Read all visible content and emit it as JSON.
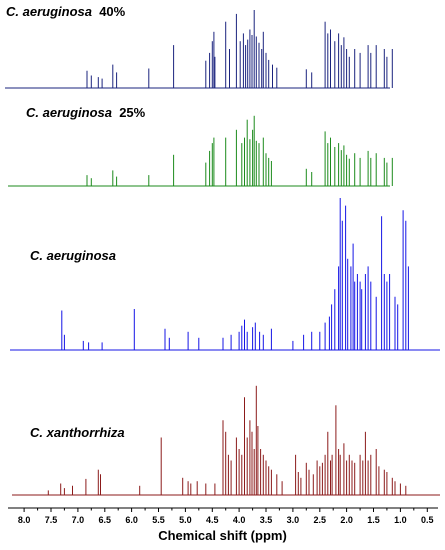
{
  "chart_data": {
    "type": "line",
    "xlabel": "Chemical shift (ppm)",
    "x_reversed": true,
    "xlim": [
      8.3,
      0.3
    ],
    "x_ticks": [
      "8.0",
      "7.5",
      "7.0",
      "6.5",
      "6.0",
      "5.5",
      "5.0",
      "4.5",
      "4.0",
      "3.5",
      "3.0",
      "2.5",
      "2.0",
      "1.5",
      "1.0",
      "0.5"
    ],
    "x_tick_values": [
      8.0,
      7.5,
      7.0,
      6.5,
      6.0,
      5.5,
      5.0,
      4.5,
      4.0,
      3.5,
      3.0,
      2.5,
      2.0,
      1.5,
      1.0,
      0.5
    ],
    "series": [
      {
        "name": "C. aeruginosa 40%",
        "species": "C. aeruginosa",
        "pct": "40%",
        "color": "#1a237e",
        "peaks": [
          [
            6.83,
            0.22
          ],
          [
            6.75,
            0.16
          ],
          [
            6.62,
            0.14
          ],
          [
            6.55,
            0.12
          ],
          [
            6.35,
            0.3
          ],
          [
            6.28,
            0.2
          ],
          [
            5.68,
            0.25
          ],
          [
            5.22,
            0.55
          ],
          [
            4.62,
            0.35
          ],
          [
            4.55,
            0.45
          ],
          [
            4.5,
            0.6
          ],
          [
            4.47,
            0.72
          ],
          [
            4.45,
            0.4
          ],
          [
            4.25,
            0.85
          ],
          [
            4.18,
            0.5
          ],
          [
            4.05,
            0.95
          ],
          [
            3.98,
            0.6
          ],
          [
            3.92,
            0.7
          ],
          [
            3.88,
            0.55
          ],
          [
            3.84,
            0.62
          ],
          [
            3.8,
            0.75
          ],
          [
            3.76,
            0.68
          ],
          [
            3.72,
            1.0
          ],
          [
            3.68,
            0.66
          ],
          [
            3.63,
            0.58
          ],
          [
            3.58,
            0.5
          ],
          [
            3.55,
            0.72
          ],
          [
            3.5,
            0.45
          ],
          [
            3.45,
            0.36
          ],
          [
            3.38,
            0.3
          ],
          [
            3.3,
            0.26
          ],
          [
            2.75,
            0.24
          ],
          [
            2.65,
            0.2
          ],
          [
            2.4,
            0.85
          ],
          [
            2.35,
            0.7
          ],
          [
            2.3,
            0.75
          ],
          [
            2.22,
            0.6
          ],
          [
            2.15,
            0.7
          ],
          [
            2.1,
            0.55
          ],
          [
            2.05,
            0.65
          ],
          [
            2.0,
            0.5
          ],
          [
            1.95,
            0.4
          ],
          [
            1.85,
            0.5
          ],
          [
            1.75,
            0.45
          ],
          [
            1.6,
            0.55
          ],
          [
            1.55,
            0.45
          ],
          [
            1.45,
            0.55
          ],
          [
            1.3,
            0.5
          ],
          [
            1.25,
            0.4
          ],
          [
            1.15,
            0.5
          ]
        ]
      },
      {
        "name": "C. aeruginosa 25%",
        "species": "C. aeruginosa",
        "pct": "25%",
        "color": "#1b8a1b",
        "peaks": [
          [
            6.83,
            0.14
          ],
          [
            6.75,
            0.1
          ],
          [
            6.35,
            0.2
          ],
          [
            6.28,
            0.12
          ],
          [
            5.68,
            0.14
          ],
          [
            5.22,
            0.4
          ],
          [
            4.62,
            0.3
          ],
          [
            4.55,
            0.45
          ],
          [
            4.5,
            0.55
          ],
          [
            4.47,
            0.62
          ],
          [
            4.25,
            0.62
          ],
          [
            4.05,
            0.72
          ],
          [
            3.95,
            0.55
          ],
          [
            3.9,
            0.62
          ],
          [
            3.85,
            0.85
          ],
          [
            3.8,
            0.6
          ],
          [
            3.75,
            0.72
          ],
          [
            3.72,
            0.9
          ],
          [
            3.68,
            0.58
          ],
          [
            3.63,
            0.55
          ],
          [
            3.55,
            0.62
          ],
          [
            3.5,
            0.42
          ],
          [
            3.45,
            0.36
          ],
          [
            3.4,
            0.32
          ],
          [
            2.75,
            0.22
          ],
          [
            2.65,
            0.18
          ],
          [
            2.4,
            0.7
          ],
          [
            2.35,
            0.55
          ],
          [
            2.3,
            0.62
          ],
          [
            2.22,
            0.5
          ],
          [
            2.15,
            0.55
          ],
          [
            2.1,
            0.46
          ],
          [
            2.05,
            0.52
          ],
          [
            2.0,
            0.4
          ],
          [
            1.95,
            0.35
          ],
          [
            1.85,
            0.42
          ],
          [
            1.75,
            0.36
          ],
          [
            1.6,
            0.45
          ],
          [
            1.55,
            0.36
          ],
          [
            1.45,
            0.42
          ],
          [
            1.3,
            0.36
          ],
          [
            1.25,
            0.3
          ],
          [
            1.15,
            0.36
          ]
        ]
      },
      {
        "name": "C. aeruginosa",
        "species": "C. aeruginosa",
        "pct": "",
        "color": "#1414e6",
        "peaks": [
          [
            7.3,
            0.26
          ],
          [
            7.25,
            0.1
          ],
          [
            6.9,
            0.06
          ],
          [
            6.8,
            0.05
          ],
          [
            6.55,
            0.05
          ],
          [
            5.95,
            0.27
          ],
          [
            5.38,
            0.14
          ],
          [
            5.3,
            0.08
          ],
          [
            4.95,
            0.12
          ],
          [
            4.75,
            0.08
          ],
          [
            4.3,
            0.08
          ],
          [
            4.15,
            0.1
          ],
          [
            4.0,
            0.12
          ],
          [
            3.95,
            0.16
          ],
          [
            3.9,
            0.2
          ],
          [
            3.85,
            0.12
          ],
          [
            3.75,
            0.15
          ],
          [
            3.7,
            0.18
          ],
          [
            3.62,
            0.12
          ],
          [
            3.55,
            0.1
          ],
          [
            3.4,
            0.14
          ],
          [
            3.0,
            0.06
          ],
          [
            2.8,
            0.1
          ],
          [
            2.65,
            0.12
          ],
          [
            2.5,
            0.12
          ],
          [
            2.4,
            0.18
          ],
          [
            2.32,
            0.22
          ],
          [
            2.28,
            0.3
          ],
          [
            2.22,
            0.4
          ],
          [
            2.15,
            0.55
          ],
          [
            2.12,
            1.0
          ],
          [
            2.08,
            0.85
          ],
          [
            2.02,
            0.95
          ],
          [
            1.98,
            0.6
          ],
          [
            1.92,
            0.55
          ],
          [
            1.88,
            0.7
          ],
          [
            1.85,
            0.45
          ],
          [
            1.8,
            0.5
          ],
          [
            1.75,
            0.45
          ],
          [
            1.72,
            0.4
          ],
          [
            1.65,
            0.5
          ],
          [
            1.6,
            0.55
          ],
          [
            1.55,
            0.45
          ],
          [
            1.45,
            0.35
          ],
          [
            1.35,
            0.88
          ],
          [
            1.3,
            0.5
          ],
          [
            1.25,
            0.45
          ],
          [
            1.2,
            0.5
          ],
          [
            1.1,
            0.35
          ],
          [
            1.05,
            0.3
          ],
          [
            0.95,
            0.92
          ],
          [
            0.9,
            0.85
          ],
          [
            0.85,
            0.55
          ]
        ]
      },
      {
        "name": "C. xanthorrhiza",
        "species": "C. xanthorrhiza",
        "pct": "",
        "color": "#8b1a1a",
        "peaks": [
          [
            7.55,
            0.04
          ],
          [
            7.32,
            0.1
          ],
          [
            7.25,
            0.06
          ],
          [
            7.1,
            0.08
          ],
          [
            6.85,
            0.14
          ],
          [
            6.62,
            0.22
          ],
          [
            6.58,
            0.18
          ],
          [
            5.85,
            0.08
          ],
          [
            5.45,
            0.5
          ],
          [
            5.05,
            0.15
          ],
          [
            4.95,
            0.12
          ],
          [
            4.9,
            0.1
          ],
          [
            4.78,
            0.12
          ],
          [
            4.62,
            0.1
          ],
          [
            4.45,
            0.1
          ],
          [
            4.3,
            0.65
          ],
          [
            4.25,
            0.55
          ],
          [
            4.2,
            0.35
          ],
          [
            4.15,
            0.3
          ],
          [
            4.05,
            0.5
          ],
          [
            4.0,
            0.4
          ],
          [
            3.95,
            0.35
          ],
          [
            3.9,
            0.85
          ],
          [
            3.85,
            0.5
          ],
          [
            3.8,
            0.65
          ],
          [
            3.76,
            0.55
          ],
          [
            3.72,
            0.4
          ],
          [
            3.68,
            0.95
          ],
          [
            3.65,
            0.6
          ],
          [
            3.6,
            0.4
          ],
          [
            3.55,
            0.35
          ],
          [
            3.5,
            0.3
          ],
          [
            3.45,
            0.25
          ],
          [
            3.4,
            0.22
          ],
          [
            3.3,
            0.18
          ],
          [
            3.2,
            0.12
          ],
          [
            2.95,
            0.35
          ],
          [
            2.9,
            0.2
          ],
          [
            2.85,
            0.15
          ],
          [
            2.75,
            0.28
          ],
          [
            2.7,
            0.22
          ],
          [
            2.62,
            0.18
          ],
          [
            2.55,
            0.3
          ],
          [
            2.5,
            0.25
          ],
          [
            2.45,
            0.28
          ],
          [
            2.4,
            0.35
          ],
          [
            2.35,
            0.55
          ],
          [
            2.3,
            0.3
          ],
          [
            2.27,
            0.35
          ],
          [
            2.2,
            0.78
          ],
          [
            2.15,
            0.4
          ],
          [
            2.12,
            0.35
          ],
          [
            2.05,
            0.45
          ],
          [
            2.0,
            0.3
          ],
          [
            1.95,
            0.35
          ],
          [
            1.9,
            0.3
          ],
          [
            1.85,
            0.28
          ],
          [
            1.75,
            0.35
          ],
          [
            1.7,
            0.3
          ],
          [
            1.65,
            0.55
          ],
          [
            1.6,
            0.3
          ],
          [
            1.55,
            0.35
          ],
          [
            1.45,
            0.4
          ],
          [
            1.4,
            0.25
          ],
          [
            1.3,
            0.22
          ],
          [
            1.25,
            0.2
          ],
          [
            1.15,
            0.15
          ],
          [
            1.1,
            0.12
          ],
          [
            1.0,
            0.1
          ],
          [
            0.9,
            0.08
          ]
        ]
      }
    ]
  }
}
